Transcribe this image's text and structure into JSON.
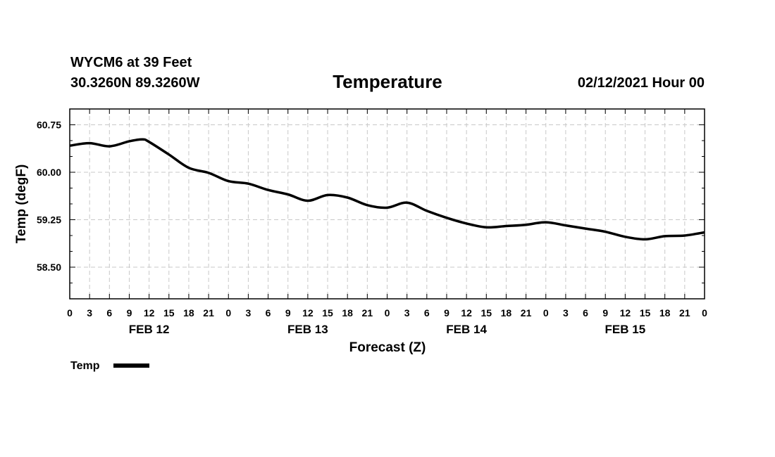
{
  "header": {
    "station": "WYCM6 at 39 Feet",
    "coords": "30.3260N 89.3260W",
    "datetime": "02/12/2021 Hour 00"
  },
  "legend": {
    "label": "Temp",
    "color": "#000000"
  },
  "chart_data": {
    "type": "line",
    "title": "Temperature",
    "xlabel": "Forecast (Z)",
    "ylabel": "Temp (degF)",
    "ylim": [
      58.0,
      61.0
    ],
    "yticks": [
      58.5,
      59.25,
      60.0,
      60.75
    ],
    "ytick_labels": [
      "58.50",
      "59.25",
      "60.00",
      "60.75"
    ],
    "xlim": [
      0,
      96
    ],
    "grid": true,
    "x_tick_hours": [
      0,
      3,
      6,
      9,
      12,
      15,
      18,
      21,
      24,
      27,
      30,
      33,
      36,
      39,
      42,
      45,
      48,
      51,
      54,
      57,
      60,
      63,
      66,
      69,
      72,
      75,
      78,
      81,
      84,
      87,
      90,
      93,
      96
    ],
    "x_tick_labels": [
      "0",
      "3",
      "6",
      "9",
      "12",
      "15",
      "18",
      "21",
      "0",
      "3",
      "6",
      "9",
      "12",
      "15",
      "18",
      "21",
      "0",
      "3",
      "6",
      "9",
      "12",
      "15",
      "18",
      "21",
      "0",
      "3",
      "6",
      "9",
      "12",
      "15",
      "18",
      "21",
      "0"
    ],
    "day_labels": [
      {
        "label": "FEB 12",
        "hour": 12
      },
      {
        "label": "FEB 13",
        "hour": 36
      },
      {
        "label": "FEB 14",
        "hour": 60
      },
      {
        "label": "FEB 15",
        "hour": 84
      }
    ],
    "series": [
      {
        "name": "Temp",
        "x": [
          0,
          3,
          6,
          9,
          11,
          12,
          15,
          18,
          21,
          24,
          27,
          30,
          33,
          36,
          39,
          42,
          45,
          48,
          51,
          54,
          57,
          60,
          63,
          66,
          69,
          72,
          75,
          78,
          81,
          84,
          87,
          90,
          93,
          96
        ],
        "values": [
          60.42,
          60.46,
          60.41,
          60.49,
          60.52,
          60.48,
          60.28,
          60.07,
          59.99,
          59.86,
          59.82,
          59.72,
          59.65,
          59.55,
          59.64,
          59.6,
          59.48,
          59.44,
          59.52,
          59.39,
          59.28,
          59.19,
          59.13,
          59.15,
          59.17,
          59.21,
          59.16,
          59.11,
          59.06,
          58.98,
          58.94,
          58.99,
          59.0,
          59.05
        ]
      }
    ]
  }
}
